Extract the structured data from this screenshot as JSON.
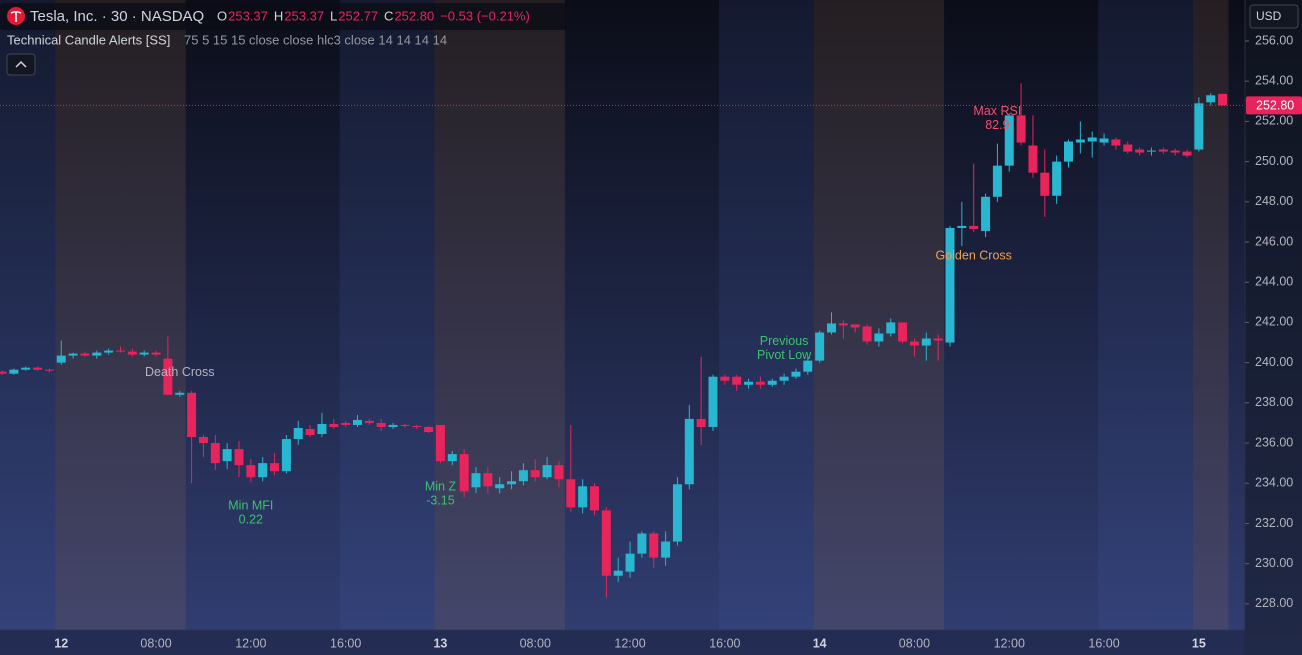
{
  "chart_data": {
    "type": "candlestick",
    "title": "Tesla, Inc. · 30 · NASDAQ",
    "ohlc_names": [
      "O",
      "H",
      "L",
      "C"
    ],
    "last_labels": {
      "open": "253.37",
      "high": "253.37",
      "low": "252.77",
      "close": "252.80"
    },
    "change": "−0.53 (−0.21%)",
    "indicator_name": "Technical Candle Alerts [SS]",
    "indicator_params": "75 5 15 15 close close hlc3 close 14 14 14 14",
    "currency": "USD",
    "up_color": "#29b6d0",
    "down_color": "#e8245d",
    "session_shading": true,
    "categories": [
      null,
      null,
      null,
      null,
      null,
      "12",
      null,
      null,
      null,
      null,
      null,
      null,
      null,
      "08:00",
      null,
      null,
      null,
      null,
      null,
      null,
      null,
      "12:00",
      null,
      null,
      null,
      null,
      null,
      null,
      null,
      "16:00",
      null,
      null,
      null,
      null,
      null,
      null,
      null,
      "13",
      null,
      null,
      null,
      null,
      null,
      null,
      null,
      "08:00",
      null,
      null,
      null,
      null,
      null,
      null,
      null,
      "12:00",
      null,
      null,
      null,
      null,
      null,
      null,
      null,
      "16:00",
      null,
      null,
      null,
      null,
      null,
      null,
      null,
      "14",
      null,
      null,
      null,
      null,
      null,
      null,
      null,
      "08:00",
      null,
      null,
      null,
      null,
      null,
      null,
      null,
      "12:00",
      null,
      null,
      null,
      null,
      null,
      null,
      null,
      "16:00",
      null,
      null,
      null,
      null,
      null,
      null,
      null,
      "15",
      null,
      null
    ],
    "open": [
      239.55,
      239.45,
      239.65,
      239.75,
      239.65,
      240.0,
      240.35,
      240.45,
      240.35,
      240.5,
      240.6,
      240.55,
      240.4,
      240.5,
      240.2,
      238.4,
      238.5,
      236.3,
      236.0,
      235.1,
      235.7,
      234.9,
      234.3,
      235.0,
      234.6,
      236.2,
      236.7,
      236.45,
      236.95,
      237.0,
      236.9,
      237.1,
      237.0,
      236.8,
      236.9,
      236.85,
      236.8,
      236.9,
      235.1,
      235.45,
      233.8,
      234.5,
      233.75,
      233.95,
      234.1,
      234.65,
      234.3,
      234.9,
      234.2,
      232.8,
      233.85,
      232.65,
      229.4,
      229.6,
      230.5,
      231.5,
      230.3,
      231.1,
      233.95,
      237.2,
      236.8,
      239.3,
      239.3,
      238.9,
      239.05,
      238.9,
      239.1,
      239.3,
      239.55,
      240.1,
      241.5,
      241.95,
      241.9,
      241.8,
      241.05,
      241.45,
      242.0,
      241.05,
      240.85,
      241.2,
      241.0,
      246.7,
      246.8,
      246.55,
      248.25,
      249.8,
      252.3,
      250.8,
      249.45,
      248.3,
      250.0,
      250.95,
      251.0,
      250.95,
      251.1,
      250.85,
      250.6,
      250.5,
      250.6,
      250.55,
      250.5,
      250.6,
      252.95,
      253.37
    ],
    "high": [
      239.6,
      239.7,
      239.8,
      239.8,
      239.7,
      241.1,
      240.5,
      240.55,
      240.6,
      240.7,
      240.8,
      240.7,
      240.6,
      240.6,
      241.3,
      238.6,
      238.6,
      236.4,
      236.4,
      236.0,
      236.1,
      235.2,
      235.3,
      235.5,
      236.4,
      237.1,
      236.9,
      237.5,
      237.2,
      237.1,
      237.4,
      237.2,
      237.2,
      237.0,
      236.95,
      236.9,
      236.85,
      236.9,
      235.6,
      235.7,
      234.8,
      234.8,
      234.3,
      234.6,
      235.0,
      235.2,
      235.3,
      235.1,
      236.9,
      234.2,
      234.0,
      232.8,
      230.3,
      231.1,
      231.6,
      231.6,
      231.6,
      234.3,
      237.9,
      240.3,
      239.4,
      239.4,
      239.4,
      239.2,
      239.3,
      239.2,
      239.45,
      239.7,
      240.3,
      241.6,
      242.5,
      242.1,
      241.9,
      241.9,
      241.7,
      242.2,
      242.0,
      241.2,
      241.5,
      241.4,
      246.8,
      248.0,
      249.9,
      248.4,
      250.9,
      252.4,
      253.9,
      252.3,
      250.6,
      250.3,
      251.1,
      252.0,
      251.5,
      251.4,
      251.2,
      251.0,
      250.7,
      250.7,
      250.7,
      250.65,
      250.6,
      253.2,
      253.4,
      253.37
    ],
    "low": [
      239.4,
      239.4,
      239.6,
      239.6,
      239.5,
      239.9,
      240.2,
      240.3,
      240.2,
      240.4,
      240.5,
      240.3,
      240.3,
      240.3,
      238.4,
      238.3,
      234.0,
      235.3,
      234.65,
      234.7,
      234.3,
      234.05,
      234.1,
      234.4,
      234.5,
      235.9,
      236.3,
      236.3,
      236.7,
      236.8,
      236.8,
      236.9,
      236.6,
      236.7,
      236.75,
      236.7,
      236.5,
      235.0,
      234.9,
      233.3,
      233.5,
      233.5,
      233.5,
      233.7,
      233.9,
      234.1,
      234.2,
      233.8,
      232.6,
      232.5,
      232.4,
      228.3,
      229.1,
      229.3,
      230.3,
      229.8,
      229.9,
      230.9,
      233.7,
      235.9,
      236.6,
      238.9,
      238.6,
      238.7,
      238.7,
      238.8,
      238.9,
      239.2,
      239.4,
      240.0,
      241.4,
      241.2,
      241.5,
      240.9,
      240.8,
      241.3,
      240.95,
      240.3,
      240.1,
      240.1,
      240.8,
      245.8,
      246.5,
      246.25,
      248.0,
      249.5,
      250.8,
      249.2,
      247.25,
      247.9,
      249.7,
      250.4,
      250.2,
      250.8,
      250.6,
      250.4,
      250.3,
      250.3,
      250.4,
      250.3,
      250.2,
      250.5,
      252.8,
      252.77
    ],
    "close": [
      239.45,
      239.65,
      239.75,
      239.65,
      239.6,
      240.35,
      240.45,
      240.35,
      240.5,
      240.6,
      240.55,
      240.4,
      240.5,
      240.4,
      238.4,
      238.5,
      236.3,
      236.0,
      235.0,
      235.7,
      234.9,
      234.3,
      235.0,
      234.6,
      236.2,
      236.75,
      236.4,
      236.95,
      236.8,
      236.9,
      237.15,
      237.0,
      236.8,
      236.9,
      236.85,
      236.8,
      236.55,
      235.1,
      235.45,
      233.6,
      234.5,
      233.85,
      233.95,
      234.1,
      234.65,
      234.3,
      234.9,
      234.2,
      232.8,
      233.85,
      232.65,
      229.4,
      229.65,
      230.5,
      231.5,
      230.3,
      231.1,
      233.95,
      237.2,
      236.8,
      239.3,
      239.1,
      238.9,
      239.05,
      238.9,
      239.1,
      239.3,
      239.55,
      240.1,
      241.5,
      241.95,
      241.85,
      241.75,
      241.05,
      241.45,
      242.0,
      241.05,
      240.85,
      241.2,
      241.1,
      246.7,
      246.8,
      246.65,
      248.25,
      249.8,
      252.3,
      250.95,
      249.45,
      248.3,
      250.0,
      251.0,
      251.1,
      251.2,
      251.15,
      250.8,
      250.5,
      250.45,
      250.55,
      250.5,
      250.45,
      250.3,
      252.9,
      253.3,
      252.8
    ],
    "ylim": [
      226.7,
      258.04
    ],
    "yticks": [
      {
        "value": 228,
        "label": "228.00"
      },
      {
        "value": 230,
        "label": "230.00"
      },
      {
        "value": 232,
        "label": "232.00"
      },
      {
        "value": 234,
        "label": "234.00"
      },
      {
        "value": 236,
        "label": "236.00"
      },
      {
        "value": 238,
        "label": "238.00"
      },
      {
        "value": 240,
        "label": "240.00"
      },
      {
        "value": 242,
        "label": "242.00"
      },
      {
        "value": 244,
        "label": "244.00"
      },
      {
        "value": 246,
        "label": "246.00"
      },
      {
        "value": 248,
        "label": "248.00"
      },
      {
        "value": 250,
        "label": "250.00"
      },
      {
        "value": 252,
        "label": "252.00"
      },
      {
        "value": 254,
        "label": "254.00"
      },
      {
        "value": 256,
        "label": "256.00"
      }
    ],
    "annotations": [
      {
        "lines": [
          "Death Cross"
        ],
        "index": 15,
        "position": "above",
        "color": "#b2b5be"
      },
      {
        "lines": [
          "Min MFI",
          "0.22"
        ],
        "index": 21,
        "position": "below",
        "color": "#3cc26e"
      },
      {
        "lines": [
          "Min Z",
          "-3.15"
        ],
        "index": 37,
        "position": "below",
        "color": "#3cc26e"
      },
      {
        "lines": [
          "Previous",
          "Pivot Low"
        ],
        "index": 66,
        "position": "above",
        "color": "#3cc26e"
      },
      {
        "lines": [
          "Golden Cross"
        ],
        "index": 82,
        "position": "below",
        "color": "#f0a04b"
      },
      {
        "lines": [
          "Max RSI",
          "82.9"
        ],
        "index": 84,
        "position": "above",
        "color": "#f0506e"
      }
    ]
  }
}
